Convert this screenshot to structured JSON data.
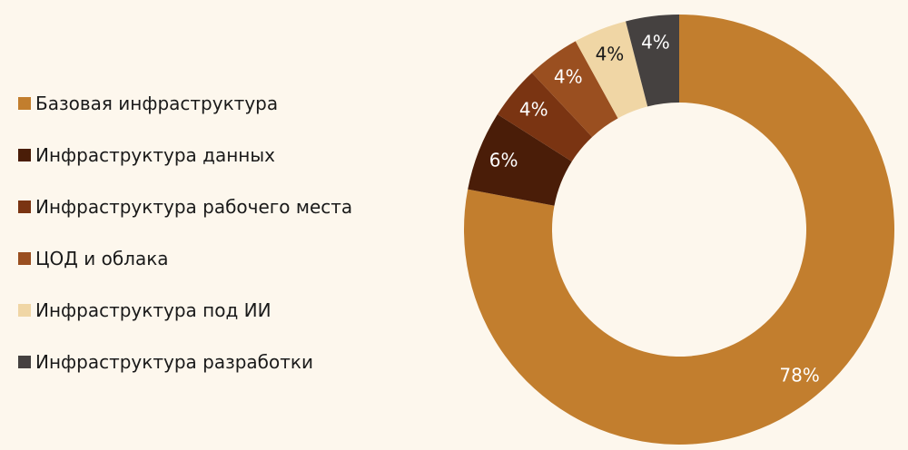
{
  "chart_data": {
    "type": "pie",
    "variant": "donut",
    "title": "",
    "legend_position": "left",
    "categories": [
      "Базовая инфраструктура",
      "Инфраструктура данных",
      "Инфраструктура рабочего места",
      "ЦОД и облака",
      "Инфраструктура под ИИ",
      "Инфраструктура разработки"
    ],
    "values": [
      78,
      6,
      4,
      4,
      4,
      4
    ],
    "value_labels": [
      "78%",
      "6%",
      "4%",
      "4%",
      "4%",
      "4%"
    ],
    "colors": [
      "#c27e2e",
      "#4a1d08",
      "#7a3412",
      "#9a4f20",
      "#f0d6a5",
      "#454140"
    ],
    "label_colors": [
      "#ffffff",
      "#ffffff",
      "#ffffff",
      "#ffffff",
      "#1a1a1a",
      "#ffffff"
    ]
  }
}
